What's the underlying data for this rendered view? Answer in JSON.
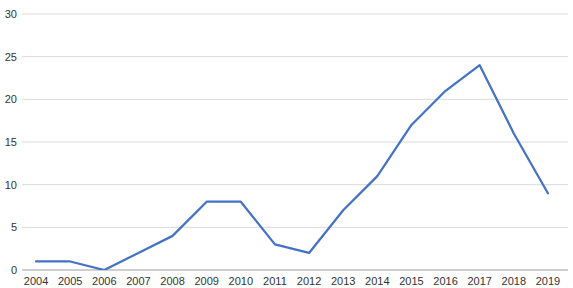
{
  "chart_data": {
    "type": "line",
    "categories": [
      "2004",
      "2005",
      "2006",
      "2007",
      "2008",
      "2009",
      "2010",
      "2011",
      "2012",
      "2013",
      "2014",
      "2015",
      "2016",
      "2017",
      "2018",
      "2019"
    ],
    "values": [
      1,
      1,
      0,
      2,
      4,
      8,
      8,
      3,
      2,
      7,
      11,
      17,
      21,
      24,
      16,
      9
    ],
    "color": "#4472c4",
    "ylim": [
      0,
      30
    ],
    "yticks": [
      0,
      5,
      10,
      15,
      20,
      25,
      30
    ],
    "grid": true
  }
}
